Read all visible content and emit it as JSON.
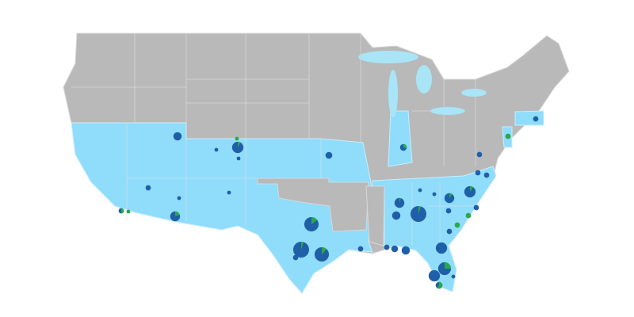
{
  "map": {
    "colors": {
      "background": "#ffffff",
      "land_default": "#b9b9b9",
      "land_highlighted": "#8fdcfb",
      "state_border": "#d8d8d8",
      "water": "#a9e4f7",
      "marker_primary": "#1f5fa8",
      "marker_secondary": "#2aa84a"
    },
    "highlighted_regions": [
      "southwest",
      "plains",
      "texas-louisiana",
      "southeast",
      "indiana",
      "new-jersey",
      "massachusetts"
    ],
    "markers": [
      {
        "size": 5,
        "secondary_share": 0
      },
      {
        "size": 2,
        "secondary_share": 0
      },
      {
        "size": 7,
        "secondary_share": 0.08
      },
      {
        "size": 2,
        "secondary_share": 1
      },
      {
        "size": 2,
        "secondary_share": 0
      },
      {
        "size": 3,
        "secondary_share": 0
      },
      {
        "size": 2,
        "secondary_share": 0
      },
      {
        "size": 2,
        "secondary_share": 0
      },
      {
        "size": 3,
        "secondary_share": 0.5
      },
      {
        "size": 2,
        "secondary_share": 1
      },
      {
        "size": 6,
        "secondary_share": 0.2
      },
      {
        "size": 4,
        "secondary_share": 0
      },
      {
        "size": 9,
        "secondary_share": 0.15
      },
      {
        "size": 10,
        "secondary_share": 0.05
      },
      {
        "size": 9,
        "secondary_share": 0.12
      },
      {
        "size": 3,
        "secondary_share": 0
      },
      {
        "size": 3,
        "secondary_share": 0
      },
      {
        "size": 4,
        "secondary_share": 0.3
      },
      {
        "size": 3,
        "secondary_share": 0
      },
      {
        "size": 3,
        "secondary_share": 0
      },
      {
        "size": 3,
        "secondary_share": 0
      },
      {
        "size": 7,
        "secondary_share": 0.1
      },
      {
        "size": 6,
        "secondary_share": 0.1
      },
      {
        "size": 2,
        "secondary_share": 0
      },
      {
        "size": 2,
        "secondary_share": 0
      },
      {
        "size": 6,
        "secondary_share": 0.05
      },
      {
        "size": 5,
        "secondary_share": 0
      },
      {
        "size": 10,
        "secondary_share": 0.05
      },
      {
        "size": 3,
        "secondary_share": 0
      },
      {
        "size": 3,
        "secondary_share": 0
      },
      {
        "size": 3,
        "secondary_share": 1
      },
      {
        "size": 3,
        "secondary_share": 1
      },
      {
        "size": 3,
        "secondary_share": 0
      },
      {
        "size": 7,
        "secondary_share": 0
      },
      {
        "size": 8,
        "secondary_share": 0.25
      },
      {
        "size": 7,
        "secondary_share": 0
      },
      {
        "size": 4,
        "secondary_share": 0.6
      },
      {
        "size": 2,
        "secondary_share": 0
      },
      {
        "size": 3,
        "secondary_share": 0
      },
      {
        "size": 4,
        "secondary_share": 0
      },
      {
        "size": 5,
        "secondary_share": 0
      },
      {
        "size": 3,
        "secondary_share": 1
      },
      {
        "size": 3,
        "secondary_share": 0
      }
    ]
  }
}
